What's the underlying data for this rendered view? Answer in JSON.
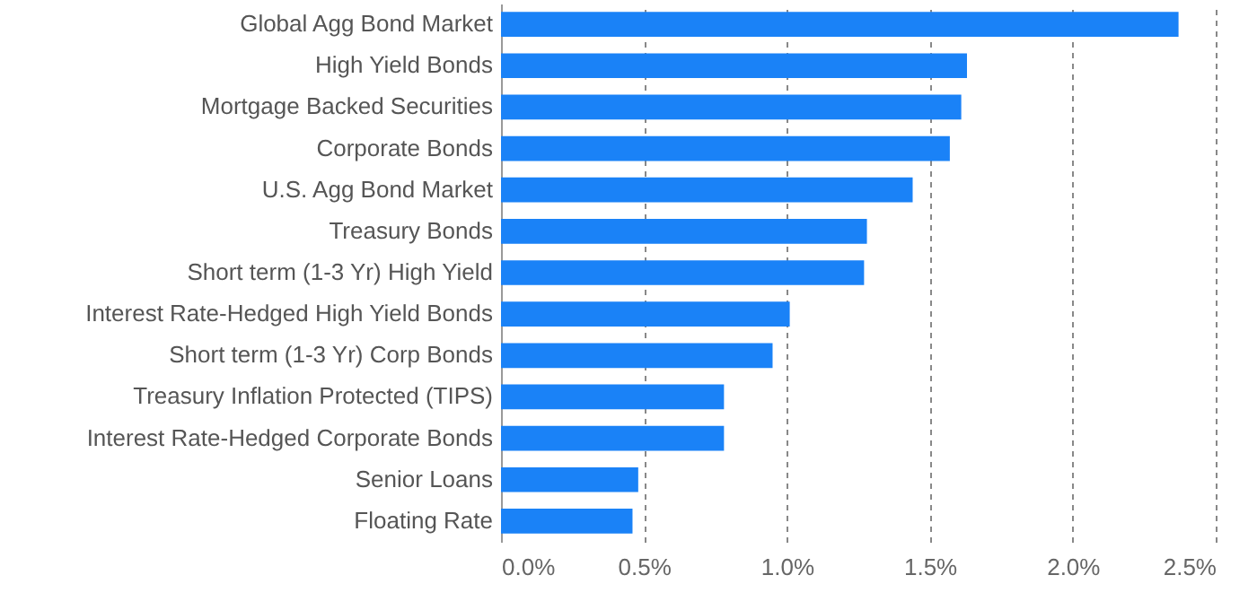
{
  "chart_data": {
    "type": "bar",
    "orientation": "horizontal",
    "categories": [
      "Global Agg Bond Market",
      "High Yield Bonds",
      "Mortgage Backed Securities",
      "Corporate Bonds",
      "U.S. Agg Bond Market",
      "Treasury Bonds",
      "Short term (1-3 Yr) High Yield",
      "Interest Rate-Hedged High Yield Bonds",
      "Short term (1-3 Yr) Corp Bonds",
      "Treasury Inflation Protected (TIPS)",
      "Interest Rate-Hedged Corporate Bonds",
      "Senior Loans",
      "Floating Rate"
    ],
    "values": [
      2.37,
      1.63,
      1.61,
      1.57,
      1.44,
      1.28,
      1.27,
      1.01,
      0.95,
      0.78,
      0.78,
      0.48,
      0.46
    ],
    "color": "#1a82f7",
    "xlim": [
      0,
      2.5
    ],
    "xticks": [
      {
        "value": 0,
        "label": "0.0%"
      },
      {
        "value": 0.5,
        "label": "0.5%"
      },
      {
        "value": 1,
        "label": "1.0%"
      },
      {
        "value": 1.5,
        "label": "1.5%"
      },
      {
        "value": 2,
        "label": "2.0%"
      },
      {
        "value": 2.5,
        "label": "2.5%"
      }
    ],
    "grid": "x"
  }
}
